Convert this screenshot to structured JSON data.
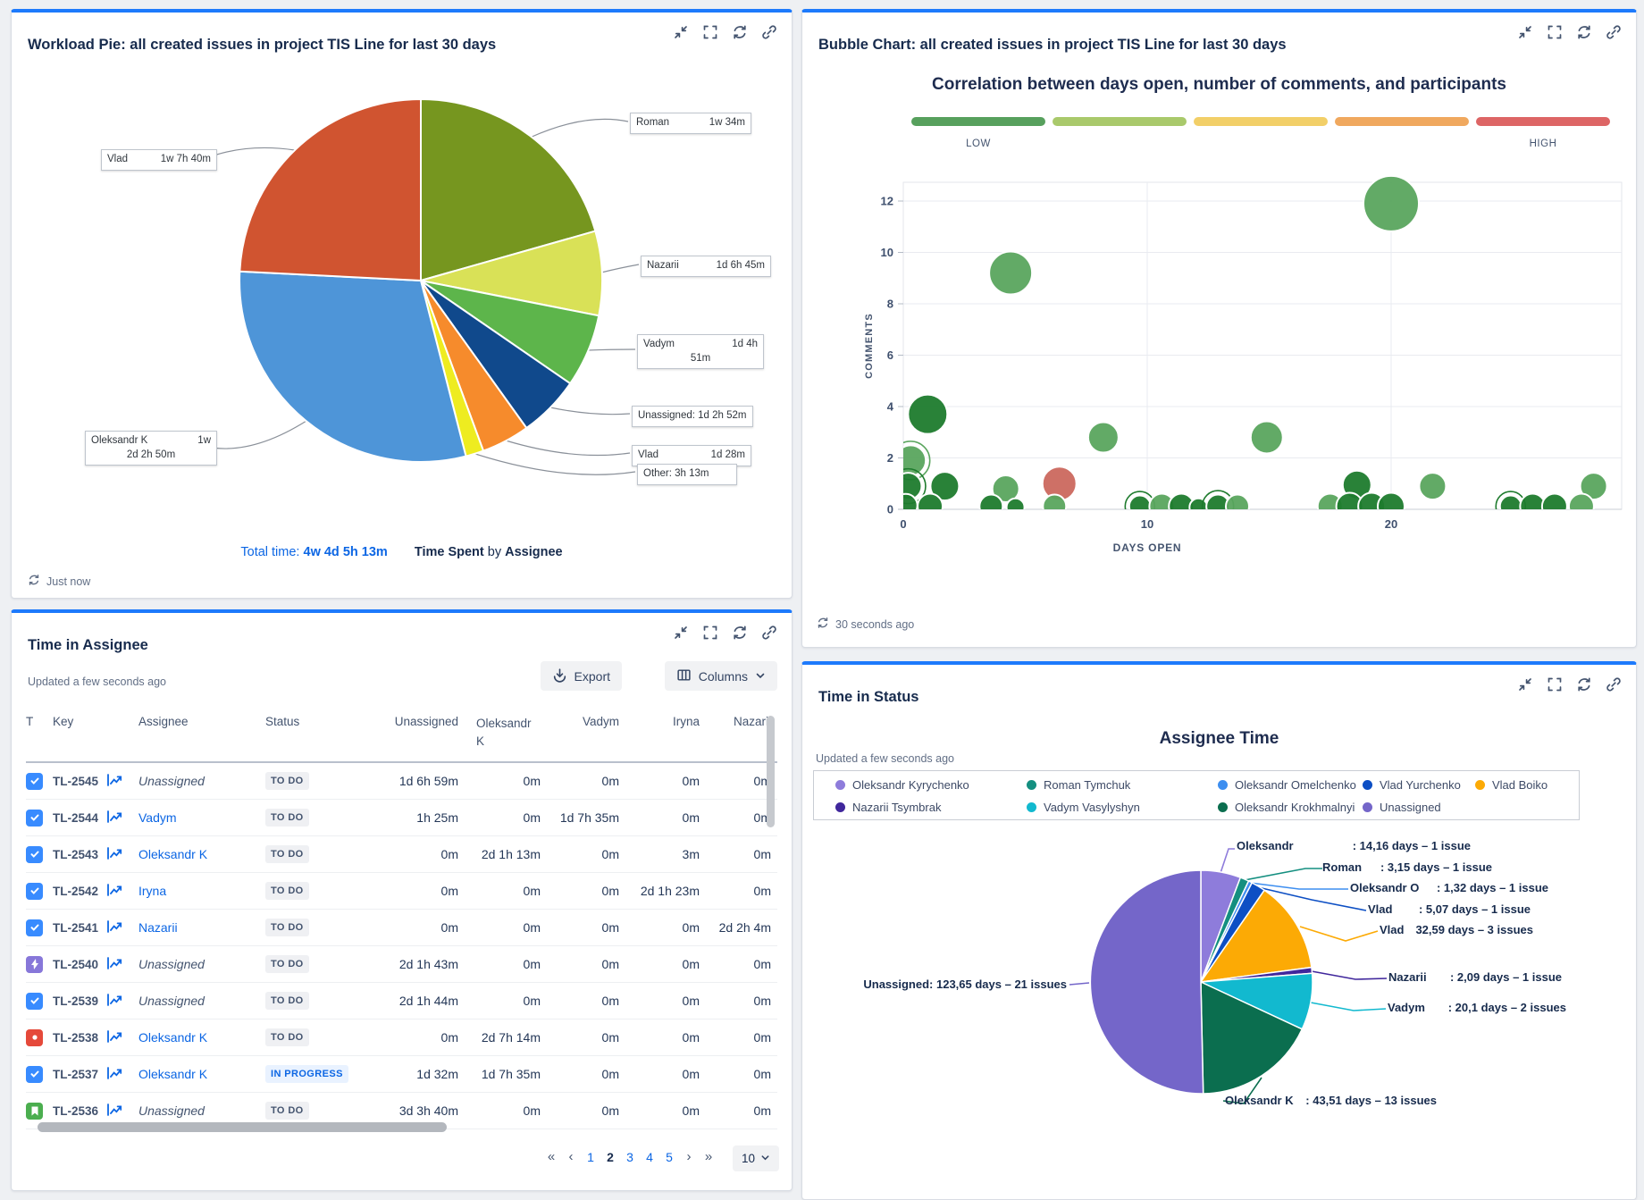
{
  "accent_color": "#1d7afc",
  "workload": {
    "title": "Workload Pie: all created issues in project TIS Line for last 30 days",
    "updated": "Just now",
    "footer": {
      "total_label": "Total time:",
      "total_value": "4w 4d 5h 13m",
      "metric": "Time Spent",
      "joiner": "by",
      "group": "Assignee"
    }
  },
  "bubble": {
    "title": "Bubble Chart: all created issues in project TIS Line for last 30 days",
    "updated": "30 seconds ago"
  },
  "assignee_table": {
    "title": "Time in Assignee",
    "updated": "Updated a few seconds ago",
    "export_label": "Export",
    "columns_label": "Columns",
    "headers": [
      "T",
      "Key",
      "",
      "Assignee",
      "Status",
      "Unassigned",
      "Oleksandr K",
      "Vadym",
      "Iryna",
      "Nazarii"
    ],
    "rows": [
      {
        "type": "task",
        "key": "TL-2545",
        "assignee": "Unassigned",
        "link": false,
        "status": "TO DO",
        "vals": [
          "1d 6h 59m",
          "0m",
          "0m",
          "0m",
          "0m"
        ]
      },
      {
        "type": "task",
        "key": "TL-2544",
        "assignee": "Vadym",
        "link": true,
        "status": "TO DO",
        "vals": [
          "1h 25m",
          "0m",
          "1d 7h 35m",
          "0m",
          "0m"
        ]
      },
      {
        "type": "task",
        "key": "TL-2543",
        "assignee": "Oleksandr K",
        "link": true,
        "status": "TO DO",
        "vals": [
          "0m",
          "2d 1h 13m",
          "0m",
          "3m",
          "0m"
        ]
      },
      {
        "type": "task",
        "key": "TL-2542",
        "assignee": "Iryna",
        "link": true,
        "status": "TO DO",
        "vals": [
          "0m",
          "0m",
          "0m",
          "2d 1h 23m",
          "0m"
        ]
      },
      {
        "type": "task",
        "key": "TL-2541",
        "assignee": "Nazarii",
        "link": true,
        "status": "TO DO",
        "vals": [
          "0m",
          "0m",
          "0m",
          "0m",
          "2d 2h 4m"
        ]
      },
      {
        "type": "bolt",
        "key": "TL-2540",
        "assignee": "Unassigned",
        "link": false,
        "status": "TO DO",
        "vals": [
          "2d 1h 43m",
          "0m",
          "0m",
          "0m",
          "0m"
        ]
      },
      {
        "type": "task",
        "key": "TL-2539",
        "assignee": "Unassigned",
        "link": false,
        "status": "TO DO",
        "vals": [
          "2d 1h 44m",
          "0m",
          "0m",
          "0m",
          "0m"
        ]
      },
      {
        "type": "bug",
        "key": "TL-2538",
        "assignee": "Oleksandr K",
        "link": true,
        "status": "TO DO",
        "vals": [
          "0m",
          "2d 7h 14m",
          "0m",
          "0m",
          "0m"
        ]
      },
      {
        "type": "task",
        "key": "TL-2537",
        "assignee": "Oleksandr K",
        "link": true,
        "status": "IN PROGRESS",
        "vals": [
          "1d 32m",
          "1d 7h 35m",
          "0m",
          "0m",
          "0m"
        ]
      },
      {
        "type": "story",
        "key": "TL-2536",
        "assignee": "Unassigned",
        "link": false,
        "status": "TO DO",
        "vals": [
          "3d 3h 40m",
          "0m",
          "0m",
          "0m",
          "0m"
        ]
      }
    ],
    "pagination": {
      "first": "«",
      "prev": "‹",
      "pages": [
        "1",
        "2",
        "3",
        "4",
        "5"
      ],
      "current": "2",
      "next": "›",
      "last": "»",
      "page_size": "10"
    }
  },
  "status_panel": {
    "title": "Time in Status",
    "chart_title": "Assignee Time",
    "updated": "Updated a few seconds ago",
    "legend_rows": [
      [
        {
          "label": "Oleksandr Kyrychenko",
          "color": "#8e7cdb"
        },
        {
          "label": "Roman Tymchuk",
          "color": "#148f80"
        },
        {
          "label": "Oleksandr Omelchenko",
          "color": "#3d8ef0"
        },
        {
          "label": "Vlad Yurchenko",
          "color": "#0d4fc4"
        },
        {
          "label": "Vlad Boiko",
          "color": "#fcaa05"
        }
      ],
      [
        {
          "label": "Nazarii Tsymbrak",
          "color": "#40279c"
        },
        {
          "label": "Vadym Vasylyshyn",
          "color": "#12b9cf"
        },
        {
          "label": "Oleksandr Krokhmalnyi",
          "color": "#0b6e4f"
        },
        {
          "label": "Unassigned",
          "color": "#7466c9"
        }
      ]
    ]
  },
  "chart_data": [
    {
      "type": "pie",
      "title": "Time Spent by Assignee (Workload Pie)",
      "total": "4w 4d 5h 13m",
      "slices": [
        {
          "label": "Roman",
          "value_text": "1w 34m",
          "pct": 20.6,
          "color": "#76961f"
        },
        {
          "label": "Nazarii",
          "value_text": "1d 6h 45m",
          "pct": 7.5,
          "color": "#d9e157"
        },
        {
          "label": "Vadym",
          "value_text": "1d 4h 51m",
          "pct": 6.5,
          "color": "#5db54b",
          "value_lines": [
            "1d 4h",
            "51m"
          ]
        },
        {
          "label": "Unassigned",
          "value_text": "1d 2h 52m",
          "pct": 5.5,
          "color": "#10498c",
          "joined": true
        },
        {
          "label": "Vlad",
          "value_text": "1d 28m",
          "pct": 4.3,
          "color": "#f68b2c"
        },
        {
          "label": "Other",
          "value_text": "3h 13m",
          "pct": 1.6,
          "color": "#eeec20",
          "joined": true
        },
        {
          "label": "Oleksandr K",
          "value_text": "1w 2d 2h 50m",
          "pct": 29.8,
          "color": "#4e95d8",
          "value_lines": [
            "1w",
            "2d 2h 50m"
          ]
        },
        {
          "label": "Vlad",
          "value_text": "1w 7h 40m",
          "pct": 24.2,
          "color": "#d05430"
        }
      ]
    },
    {
      "type": "scatter",
      "title": "Correlation between days open, number of comments, and participants",
      "xlabel": "DAYS OPEN",
      "ylabel": "COMMENTS",
      "xticks": [
        0,
        10,
        20
      ],
      "yticks": [
        0,
        2,
        4,
        6,
        8,
        10,
        12
      ],
      "xlim": [
        0,
        29.5
      ],
      "ylim": [
        0,
        12.8
      ],
      "legend_low": "LOW",
      "legend_high": "HIGH",
      "gradient_colors": [
        "#57a05d",
        "#a9c96b",
        "#f2cf68",
        "#f0a85e",
        "#dd6565"
      ],
      "point_colors": {
        "g": "#1e7b2d",
        "m": "#5aa55e",
        "r": "#cb685e"
      },
      "points": [
        {
          "x": 20,
          "y": 11.9,
          "r": 31,
          "c": "m"
        },
        {
          "x": 4.4,
          "y": 9.2,
          "r": 24,
          "c": "m"
        },
        {
          "x": 1,
          "y": 3.7,
          "r": 22,
          "c": "g"
        },
        {
          "x": 8.2,
          "y": 2.8,
          "r": 17,
          "c": "m"
        },
        {
          "x": 14.9,
          "y": 2.8,
          "r": 18,
          "c": "m"
        },
        {
          "x": 0.3,
          "y": 1.9,
          "r": 17,
          "c": "m",
          "ring": true
        },
        {
          "x": 0.2,
          "y": 0.9,
          "r": 15,
          "c": "g",
          "ring": true
        },
        {
          "x": 1.7,
          "y": 0.9,
          "r": 16,
          "c": "g"
        },
        {
          "x": 4.2,
          "y": 0.8,
          "r": 15,
          "c": "m"
        },
        {
          "x": 6.4,
          "y": 1.0,
          "r": 19,
          "c": "r"
        },
        {
          "x": 18.6,
          "y": 0.95,
          "r": 16,
          "c": "g"
        },
        {
          "x": 21.7,
          "y": 0.9,
          "r": 15,
          "c": "m"
        },
        {
          "x": 28.3,
          "y": 0.9,
          "r": 15,
          "c": "m"
        },
        {
          "x": 0.1,
          "y": 0.15,
          "r": 13,
          "c": "g"
        },
        {
          "x": 1.1,
          "y": 0.12,
          "r": 14,
          "c": "g"
        },
        {
          "x": 3.6,
          "y": 0.12,
          "r": 13,
          "c": "g"
        },
        {
          "x": 4.6,
          "y": 0.08,
          "r": 10,
          "c": "g"
        },
        {
          "x": 6.2,
          "y": 0.12,
          "r": 13,
          "c": "m"
        },
        {
          "x": 9.7,
          "y": 0.12,
          "r": 12,
          "c": "g",
          "ring": true
        },
        {
          "x": 10.6,
          "y": 0.12,
          "r": 14,
          "c": "m"
        },
        {
          "x": 11.4,
          "y": 0.12,
          "r": 14,
          "c": "g"
        },
        {
          "x": 12.1,
          "y": 0.08,
          "r": 10,
          "c": "g"
        },
        {
          "x": 12.9,
          "y": 0.12,
          "r": 13,
          "c": "g",
          "ring": true
        },
        {
          "x": 13.7,
          "y": 0.12,
          "r": 13,
          "c": "m"
        },
        {
          "x": 17.5,
          "y": 0.12,
          "r": 14,
          "c": "m"
        },
        {
          "x": 18.3,
          "y": 0.12,
          "r": 15,
          "c": "g"
        },
        {
          "x": 19.2,
          "y": 0.12,
          "r": 15,
          "c": "g"
        },
        {
          "x": 20.0,
          "y": 0.12,
          "r": 15,
          "c": "g"
        },
        {
          "x": 24.9,
          "y": 0.12,
          "r": 12,
          "c": "g",
          "ring": true
        },
        {
          "x": 25.8,
          "y": 0.12,
          "r": 14,
          "c": "g"
        },
        {
          "x": 26.7,
          "y": 0.12,
          "r": 14,
          "c": "g"
        },
        {
          "x": 27.8,
          "y": 0.12,
          "r": 14,
          "c": "m"
        }
      ]
    },
    {
      "type": "pie",
      "title": "Assignee Time",
      "slices": [
        {
          "name": "Oleksandr",
          "value_text": ": 14,16 days – 1 issue",
          "days": 14.16,
          "pct": 5.76,
          "color": "#8e7cdb"
        },
        {
          "name": "Roman",
          "value_text": ": 3,15 days – 1 issue",
          "days": 3.15,
          "pct": 1.28,
          "color": "#148f80"
        },
        {
          "name": "Oleksandr O",
          "value_text": ": 1,32 days – 1 issue",
          "days": 1.32,
          "pct": 0.54,
          "color": "#3d8ef0"
        },
        {
          "name": "Vlad",
          "value_text": ": 5,07 days – 1 issue",
          "days": 5.07,
          "pct": 2.06,
          "color": "#0d4fc4"
        },
        {
          "name": "Vlad",
          "value_text": "32,59 days – 3 issues",
          "days": 32.59,
          "pct": 13.27,
          "color": "#fcaa05"
        },
        {
          "name": "Nazarii",
          "value_text": ": 2,09 days – 1 issue",
          "days": 2.09,
          "pct": 0.85,
          "color": "#40279c"
        },
        {
          "name": "Vadym",
          "value_text": ": 20,1 days – 2 issues",
          "days": 20.1,
          "pct": 8.18,
          "color": "#12b9cf"
        },
        {
          "name": "Oleksandr K",
          "value_text": ": 43,51 days – 13 issues",
          "days": 43.51,
          "pct": 17.71,
          "color": "#0b6e4f"
        },
        {
          "name": "Unassigned",
          "value_text": ": 123,65 days – 21 issues",
          "days": 123.65,
          "pct": 50.35,
          "color": "#7466c9",
          "joined": true
        }
      ]
    }
  ],
  "icons": {
    "panel_header": [
      "collapse",
      "expand",
      "refresh",
      "link"
    ],
    "table": [
      "task",
      "bolt",
      "bug",
      "story",
      "trend-chart"
    ],
    "toolbar": [
      "download",
      "columns",
      "chevron-down"
    ]
  }
}
